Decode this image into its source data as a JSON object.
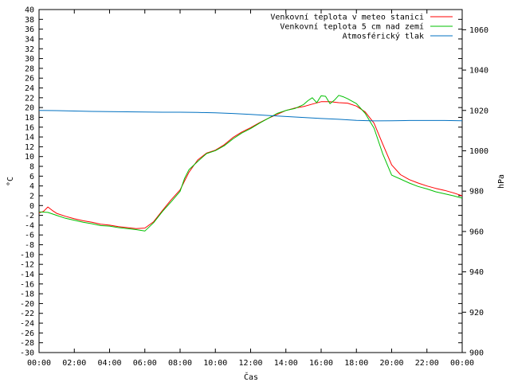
{
  "chart_data": {
    "type": "line",
    "xlabel": "Čas",
    "ylabel": "°C",
    "y2label": "hPa",
    "x_ticks": [
      "00:00",
      "02:00",
      "04:00",
      "06:00",
      "08:00",
      "10:00",
      "12:00",
      "14:00",
      "16:00",
      "18:00",
      "20:00",
      "22:00",
      "00:00"
    ],
    "xlim_hours": [
      0,
      24
    ],
    "ylim": [
      -30,
      40
    ],
    "y_tick_step": 2,
    "y2lim": [
      900,
      1070
    ],
    "y2_ticks": [
      900,
      920,
      940,
      960,
      980,
      1000,
      1020,
      1040,
      1060
    ],
    "grid": false,
    "legend_position": "top-right",
    "series": [
      {
        "name": "Venkovní teplota v meteo stanici",
        "axis": "left",
        "color": "#ff0000",
        "x": [
          0,
          0.25,
          0.5,
          0.75,
          1,
          1.5,
          2,
          2.5,
          3,
          3.5,
          4,
          4.5,
          5,
          5.5,
          6,
          6.5,
          7,
          7.5,
          8,
          8.5,
          9,
          9.5,
          10,
          10.5,
          11,
          11.5,
          12,
          12.5,
          13,
          13.5,
          14,
          14.5,
          15,
          15.5,
          16,
          16.5,
          17,
          17.5,
          18,
          18.5,
          19,
          19.5,
          20,
          20.5,
          21,
          21.5,
          22,
          22.5,
          23,
          23.5,
          24
        ],
        "y": [
          -1.5,
          -1.2,
          -0.3,
          -1.0,
          -1.6,
          -2.2,
          -2.7,
          -3.1,
          -3.4,
          -3.8,
          -4.0,
          -4.3,
          -4.5,
          -4.7,
          -4.6,
          -3.3,
          -1.0,
          1.2,
          3.2,
          6.8,
          9.3,
          10.7,
          11.3,
          12.4,
          13.9,
          15.0,
          15.9,
          16.9,
          17.8,
          18.6,
          19.4,
          19.9,
          20.2,
          20.7,
          21.2,
          21.2,
          21.0,
          20.9,
          20.3,
          19.1,
          16.8,
          12.5,
          8.3,
          6.3,
          5.3,
          4.6,
          4.0,
          3.5,
          3.1,
          2.6,
          2.0
        ]
      },
      {
        "name": "Venkovní teplota 5 cm nad zemí",
        "axis": "left",
        "color": "#00c000",
        "x": [
          0,
          0.5,
          1,
          1.5,
          2,
          2.5,
          3,
          3.5,
          4,
          4.5,
          5,
          5.5,
          6,
          6.5,
          7,
          7.5,
          8,
          8.25,
          8.5,
          9,
          9.5,
          10,
          10.5,
          11,
          11.5,
          12,
          12.5,
          13,
          13.5,
          14,
          14.5,
          15,
          15.25,
          15.5,
          15.75,
          16,
          16.25,
          16.5,
          16.75,
          17,
          17.25,
          17.5,
          18,
          18.5,
          19,
          19.5,
          20,
          20.5,
          21,
          21.5,
          22,
          22.5,
          23,
          23.5,
          24
        ],
        "y": [
          -1.3,
          -1.4,
          -2.0,
          -2.6,
          -3.0,
          -3.4,
          -3.7,
          -4.1,
          -4.2,
          -4.5,
          -4.7,
          -4.9,
          -5.2,
          -3.5,
          -1.2,
          0.8,
          2.9,
          5.5,
          7.3,
          9.0,
          10.6,
          11.2,
          12.2,
          13.6,
          14.8,
          15.7,
          16.8,
          17.8,
          18.8,
          19.4,
          19.8,
          20.6,
          21.4,
          22.0,
          21.0,
          22.4,
          22.3,
          20.8,
          21.5,
          22.5,
          22.2,
          21.8,
          20.8,
          18.8,
          15.8,
          10.5,
          6.2,
          5.4,
          4.6,
          3.9,
          3.4,
          2.8,
          2.4,
          2.0,
          1.5
        ]
      },
      {
        "name": "Atmosférický tlak",
        "axis": "right",
        "color": "#0070c0",
        "x": [
          0,
          1,
          2,
          3,
          4,
          5,
          6,
          7,
          8,
          9,
          10,
          11,
          12,
          13,
          14,
          15,
          16,
          17,
          18,
          19,
          20,
          21,
          22,
          23,
          24
        ],
        "y": [
          1020.0,
          1019.9,
          1019.7,
          1019.5,
          1019.4,
          1019.3,
          1019.2,
          1019.1,
          1019.1,
          1019.0,
          1018.8,
          1018.5,
          1018.0,
          1017.5,
          1017.0,
          1016.5,
          1016.0,
          1015.6,
          1015.1,
          1014.8,
          1014.9,
          1015.0,
          1015.0,
          1015.0,
          1014.9
        ]
      }
    ]
  }
}
